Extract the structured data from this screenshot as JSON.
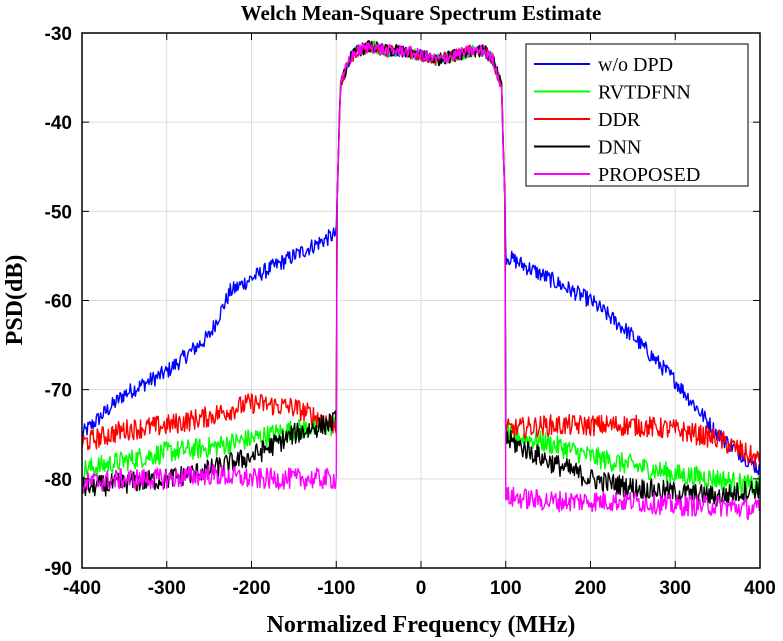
{
  "chart_data": {
    "type": "line",
    "title": "Welch Mean-Square Spectrum Estimate",
    "xlabel": "Normalized Frequency (MHz)",
    "ylabel": "PSD(dB)",
    "xlim": [
      -400,
      400
    ],
    "ylim": [
      -90,
      -30
    ],
    "xticks": [
      -400,
      -300,
      -200,
      -100,
      0,
      100,
      200,
      300,
      400
    ],
    "yticks": [
      -90,
      -80,
      -70,
      -60,
      -50,
      -40,
      -30
    ],
    "grid": true,
    "legend_position": "top-right",
    "series": [
      {
        "name": "w/o DPD",
        "color": "#0000ff",
        "x": [
          -400,
          -350,
          -300,
          -250,
          -225,
          -200,
          -150,
          -100,
          100,
          150,
          200,
          250,
          300,
          350,
          400
        ],
        "y": [
          -75,
          -70.5,
          -68,
          -64,
          -59,
          -57.5,
          -55,
          -52.5,
          -55,
          -57.5,
          -60,
          -64,
          -69,
          -75,
          -79
        ]
      },
      {
        "name": "RVTDFNN",
        "color": "#00ff00",
        "x": [
          -400,
          -350,
          -300,
          -250,
          -200,
          -150,
          -100,
          100,
          150,
          200,
          250,
          300,
          350,
          400
        ],
        "y": [
          -79,
          -78,
          -77,
          -76.5,
          -75.5,
          -74.5,
          -74,
          -75,
          -76,
          -77.5,
          -78.5,
          -79.5,
          -80,
          -81
        ]
      },
      {
        "name": "DDR",
        "color": "#ff0000",
        "x": [
          -400,
          -350,
          -300,
          -250,
          -200,
          -150,
          -100,
          100,
          150,
          200,
          250,
          300,
          350,
          400
        ],
        "y": [
          -76,
          -74.5,
          -74,
          -73,
          -71.5,
          -72,
          -74,
          -74.5,
          -74,
          -74,
          -74,
          -74.5,
          -75.5,
          -78
        ]
      },
      {
        "name": "DNN",
        "color": "#000000",
        "x": [
          -400,
          -350,
          -300,
          -250,
          -200,
          -150,
          -100,
          100,
          150,
          200,
          250,
          300,
          350,
          400
        ],
        "y": [
          -81,
          -80.5,
          -80,
          -79,
          -77.5,
          -75,
          -73.5,
          -75.5,
          -78,
          -80,
          -81,
          -81.5,
          -82,
          -81
        ]
      },
      {
        "name": "PROPOSED",
        "color": "#ff00ff",
        "x": [
          -400,
          -350,
          -300,
          -250,
          -200,
          -150,
          -100,
          100,
          150,
          200,
          250,
          300,
          350,
          400
        ],
        "y": [
          -80.5,
          -80,
          -80,
          -79.5,
          -80,
          -80,
          -80,
          -82,
          -82.5,
          -82.5,
          -82.5,
          -83,
          -83,
          -83.5
        ]
      }
    ],
    "shared_passband": {
      "x": [
        -100,
        -95,
        -85,
        -75,
        -60,
        -40,
        -20,
        0,
        20,
        40,
        60,
        75,
        85,
        95,
        100
      ],
      "y": [
        -52,
        -36,
        -33,
        -32,
        -31.5,
        -32,
        -32,
        -32.5,
        -33,
        -32.5,
        -32,
        -32,
        -33,
        -36,
        -52
      ]
    }
  }
}
